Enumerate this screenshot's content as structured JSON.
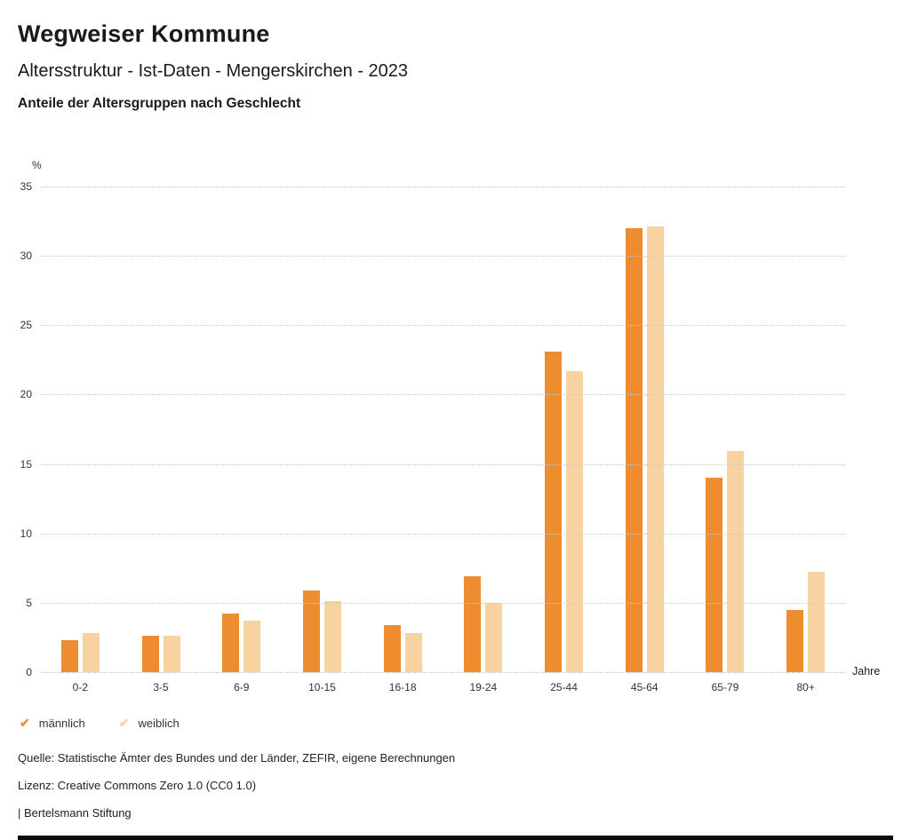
{
  "header": {
    "app_title": "Wegweiser Kommune"
  },
  "chart_data": {
    "type": "bar",
    "title": "Altersstruktur - Ist-Daten - Mengerskirchen - 2023",
    "subtitle": "Anteile der Altersgruppen nach Geschlecht",
    "ylabel": "%",
    "xlabel": "Jahre",
    "ylim": [
      0,
      35
    ],
    "ytick_step": 5,
    "grid": "horizontal-dotted",
    "legend_position": "bottom-left",
    "categories": [
      "0-2",
      "3-5",
      "6-9",
      "10-15",
      "16-18",
      "19-24",
      "25-44",
      "45-64",
      "65-79",
      "80+"
    ],
    "series": [
      {
        "name": "männlich",
        "color": "#ee8d30",
        "values": [
          2.3,
          2.6,
          4.2,
          5.9,
          3.4,
          6.9,
          23.1,
          32.0,
          14.0,
          4.5
        ]
      },
      {
        "name": "weiblich",
        "color": "#f8d3a2",
        "values": [
          2.8,
          2.6,
          3.7,
          5.1,
          2.8,
          5.0,
          21.7,
          32.1,
          15.9,
          7.2
        ]
      }
    ]
  },
  "legend": {
    "check_icon": "✔"
  },
  "footer": {
    "source": "Quelle: Statistische Ämter des Bundes und der Länder, ZEFIR, eigene Berechnungen",
    "license": "Lizenz: Creative Commons Zero 1.0 (CC0 1.0)",
    "attribution": "| Bertelsmann Stiftung"
  }
}
